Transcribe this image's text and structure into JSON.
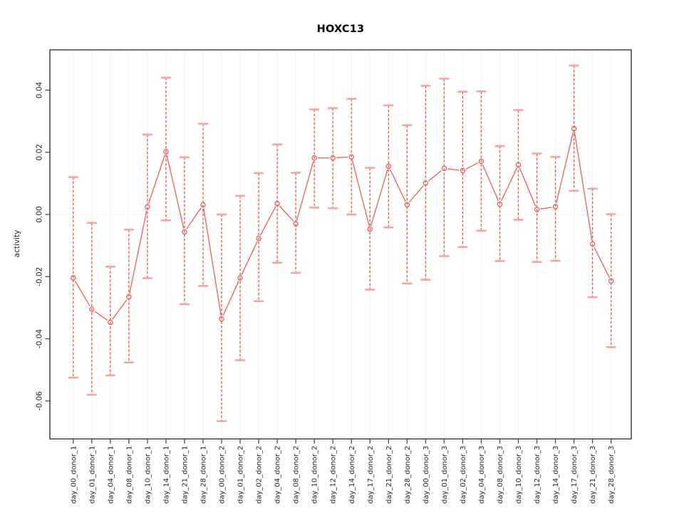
{
  "page": {
    "background": "#ffffff"
  },
  "chart_data": {
    "type": "line",
    "title": "HOXC13",
    "xlabel": "",
    "ylabel": "activity",
    "ylim": [
      -0.072,
      0.053
    ],
    "grid": "vertical dotted gridline per category; dotted horizontal line at y=0 only; legend none",
    "point_style": "open circles connected by segments (R type='b'), dashed vertical error bars with caps",
    "colors": {
      "series": "#f0504c",
      "error_cap": "#f7a3a1",
      "gridline": "#d8d8d8",
      "box": "#4c4c4c",
      "tick_text": "#262626"
    },
    "yticks": [
      0.04,
      0.02,
      0.0,
      -0.02,
      -0.04,
      -0.06
    ],
    "ytick_labels": [
      "0.04",
      "0.02",
      "0.00",
      "-0.02",
      "-0.04",
      "-0.06"
    ],
    "categories": [
      "day_00_donor_1",
      "day_01_donor_1",
      "day_04_donor_1",
      "day_08_donor_1",
      "day_10_donor_1",
      "day_14_donor_1",
      "day_21_donor_1",
      "day_28_donor_1",
      "day_00_donor_2",
      "day_01_donor_2",
      "day_02_donor_2",
      "day_04_donor_2",
      "day_08_donor_2",
      "day_10_donor_2",
      "day_12_donor_2",
      "day_14_donor_2",
      "day_17_donor_2",
      "day_21_donor_2",
      "day_28_donor_2",
      "day_00_donor_3",
      "day_01_donor_3",
      "day_02_donor_3",
      "day_04_donor_3",
      "day_08_donor_3",
      "day_10_donor_3",
      "day_12_donor_3",
      "day_14_donor_3",
      "day_17_donor_3",
      "day_21_donor_3",
      "day_28_donor_3"
    ],
    "series": [
      {
        "name": "activity",
        "values": [
          -0.0204,
          -0.0305,
          -0.0347,
          -0.0265,
          0.0024,
          0.0202,
          -0.0056,
          0.0031,
          -0.0336,
          -0.0204,
          -0.0077,
          0.0035,
          -0.003,
          0.0182,
          0.0182,
          0.0185,
          -0.0047,
          0.0155,
          0.0031,
          0.0101,
          0.0148,
          0.0141,
          0.0171,
          0.0033,
          0.016,
          0.0016,
          0.0025,
          0.0276,
          -0.0095,
          -0.0214
        ],
        "error_upper": [
          0.012,
          -0.0027,
          -0.0168,
          -0.0049,
          0.0257,
          0.044,
          0.0184,
          0.0292,
          0.0,
          0.006,
          0.0133,
          0.0225,
          0.0134,
          0.0338,
          0.0342,
          0.0372,
          0.015,
          0.0351,
          0.0287,
          0.0414,
          0.0437,
          0.0395,
          0.0396,
          0.022,
          0.0336,
          0.0196,
          0.0185,
          0.0479,
          0.0083,
          0.0001
        ],
        "error_lower": [
          -0.0525,
          -0.058,
          -0.0518,
          -0.0476,
          -0.0205,
          -0.0019,
          -0.0289,
          -0.023,
          -0.0665,
          -0.0469,
          -0.0279,
          -0.0155,
          -0.0188,
          0.0022,
          0.002,
          0.0,
          -0.0242,
          -0.0042,
          -0.0222,
          -0.021,
          -0.0134,
          -0.0105,
          -0.0052,
          -0.015,
          -0.0017,
          -0.0153,
          -0.0149,
          0.0076,
          -0.0266,
          -0.0427
        ]
      }
    ]
  }
}
